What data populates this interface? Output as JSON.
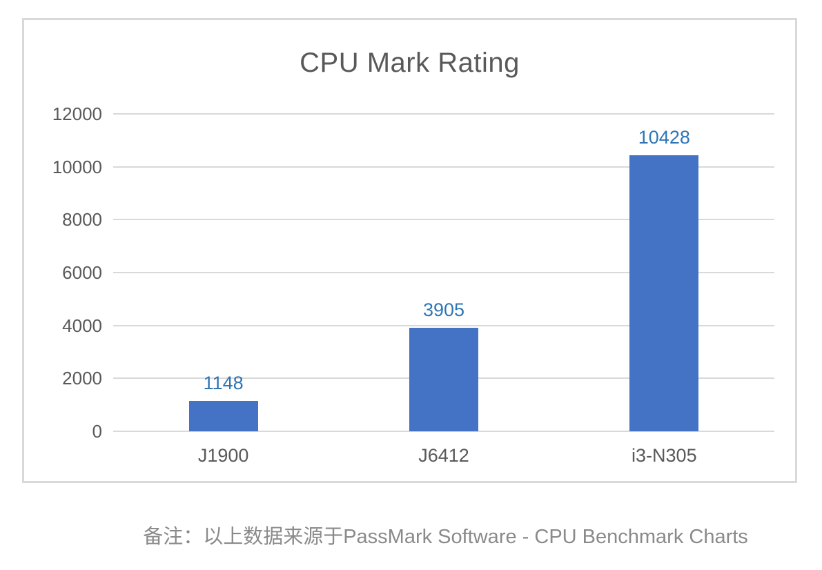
{
  "page": {
    "note": "备注：以上数据来源于PassMark Software - CPU Benchmark Charts"
  },
  "chart_data": {
    "type": "bar",
    "title": "CPU Mark Rating",
    "categories": [
      "J1900",
      "J6412",
      "i3-N305"
    ],
    "values": [
      1148,
      3905,
      10428
    ],
    "data_labels": [
      "1148",
      "3905",
      "10428"
    ],
    "xlabel": "",
    "ylabel": "",
    "ylim": [
      0,
      12000
    ],
    "yticks": [
      0,
      2000,
      4000,
      6000,
      8000,
      10000,
      12000
    ],
    "ytick_labels": [
      "0",
      "2000",
      "4000",
      "6000",
      "8000",
      "10000",
      "12000"
    ],
    "grid": "horizontal",
    "legend": "none",
    "colors": {
      "bar": "#4472C4",
      "data_label": "#2E75B6",
      "axis_text": "#595959",
      "title_text": "#595959",
      "gridline": "#D9D9D9",
      "frame_border": "#D9D9D9",
      "note_text": "#8A8A8A",
      "background": "#FFFFFF"
    }
  }
}
